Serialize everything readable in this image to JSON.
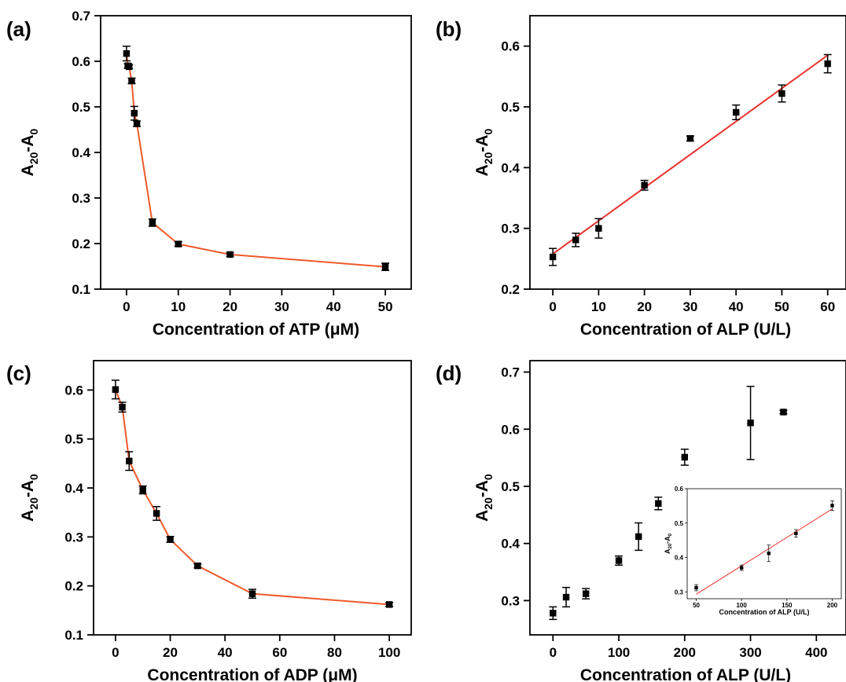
{
  "chart_data": [
    {
      "id": "a",
      "type": "line",
      "panel_label": "(a)",
      "xlabel": "Concentration of ATP (μM)",
      "ylabel_main": "A",
      "ylabel_sub1": "20",
      "ylabel_mid": "-A",
      "ylabel_sub2": "0",
      "xlim": [
        -5,
        55
      ],
      "ylim": [
        0.1,
        0.7
      ],
      "xticks": [
        0,
        10,
        20,
        30,
        40,
        50
      ],
      "yticks": [
        0.1,
        0.2,
        0.3,
        0.4,
        0.5,
        0.6,
        0.7
      ],
      "line_color": "#ef5a2b",
      "grid": false,
      "series": [
        {
          "x": [
            0,
            0.25,
            0.5,
            1,
            1.5,
            2,
            5,
            10,
            20,
            50
          ],
          "y": [
            0.617,
            0.59,
            0.588,
            0.557,
            0.486,
            0.463,
            0.246,
            0.199,
            0.176,
            0.149
          ],
          "err": [
            0.016,
            0.005,
            0.004,
            0.006,
            0.015,
            0.006,
            0.008,
            0.005,
            0.004,
            0.008
          ],
          "connect": true
        }
      ]
    },
    {
      "id": "b",
      "type": "scatter",
      "panel_label": "(b)",
      "xlabel": "Concentration of ALP (U/L)",
      "ylabel_main": "A",
      "ylabel_sub1": "20",
      "ylabel_mid": "-A",
      "ylabel_sub2": "0",
      "xlim": [
        -5,
        64
      ],
      "ylim": [
        0.2,
        0.65
      ],
      "xticks": [
        0,
        10,
        20,
        30,
        40,
        50,
        60
      ],
      "yticks": [
        0.2,
        0.3,
        0.4,
        0.5,
        0.6
      ],
      "line_color": "#e8322d",
      "grid": false,
      "fit": {
        "x": [
          0,
          60
        ],
        "y": [
          0.258,
          0.585
        ]
      },
      "series": [
        {
          "x": [
            0,
            5,
            10,
            20,
            30,
            40,
            50,
            60
          ],
          "y": [
            0.253,
            0.281,
            0.3,
            0.371,
            0.448,
            0.491,
            0.522,
            0.571
          ],
          "err": [
            0.014,
            0.011,
            0.016,
            0.008,
            0.004,
            0.012,
            0.014,
            0.015
          ],
          "connect": false
        }
      ]
    },
    {
      "id": "c",
      "type": "line",
      "panel_label": "(c)",
      "xlabel": "Concentration of ADP (μM)",
      "ylabel_main": "A",
      "ylabel_sub1": "20",
      "ylabel_mid": "-A",
      "ylabel_sub2": "0",
      "xlim": [
        -8,
        108
      ],
      "ylim": [
        0.1,
        0.66
      ],
      "xticks": [
        0,
        20,
        40,
        60,
        80,
        100
      ],
      "yticks": [
        0.1,
        0.2,
        0.3,
        0.4,
        0.5,
        0.6
      ],
      "line_color": "#ef5a2b",
      "grid": false,
      "series": [
        {
          "x": [
            0,
            2.5,
            5,
            10,
            15,
            20,
            30,
            50,
            100
          ],
          "y": [
            0.601,
            0.565,
            0.455,
            0.396,
            0.348,
            0.295,
            0.241,
            0.184,
            0.162
          ],
          "err": [
            0.019,
            0.01,
            0.019,
            0.008,
            0.014,
            0.006,
            0.004,
            0.009,
            0.004
          ],
          "connect": true
        }
      ]
    },
    {
      "id": "d",
      "type": "scatter",
      "panel_label": "(d)",
      "xlabel": "Concentration of ALP (U/L)",
      "ylabel_main": "A",
      "ylabel_sub1": "20",
      "ylabel_mid": "-A",
      "ylabel_sub2": "0",
      "xlim": [
        -35,
        445
      ],
      "ylim": [
        0.24,
        0.72
      ],
      "xticks": [
        0,
        100,
        200,
        300,
        400
      ],
      "yticks": [
        0.3,
        0.4,
        0.5,
        0.6,
        0.7
      ],
      "grid": false,
      "series": [
        {
          "x": [
            0,
            20,
            50,
            100,
            130,
            160,
            200,
            300,
            350
          ],
          "y": [
            0.278,
            0.306,
            0.312,
            0.37,
            0.412,
            0.47,
            0.551,
            0.611,
            0.63
          ],
          "err": [
            0.011,
            0.017,
            0.009,
            0.008,
            0.024,
            0.011,
            0.014,
            0.064,
            0.003
          ],
          "connect": false
        }
      ],
      "inset": {
        "xlabel": "Concentration of ALP (U/L)",
        "ylabel_main": "A",
        "ylabel_sub1": "20",
        "ylabel_mid": "-A",
        "ylabel_sub2": "0",
        "xlim": [
          40,
          210
        ],
        "ylim": [
          0.28,
          0.6
        ],
        "xticks": [
          50,
          100,
          150,
          200
        ],
        "yticks": [
          0.3,
          0.4,
          0.5,
          0.6
        ],
        "line_color": "#e8322d",
        "fit": {
          "x": [
            50,
            200
          ],
          "y": [
            0.293,
            0.541
          ]
        },
        "x": [
          50,
          100,
          130,
          160,
          200
        ],
        "y": [
          0.312,
          0.37,
          0.412,
          0.47,
          0.551
        ],
        "err": [
          0.009,
          0.008,
          0.024,
          0.011,
          0.014
        ]
      }
    }
  ]
}
